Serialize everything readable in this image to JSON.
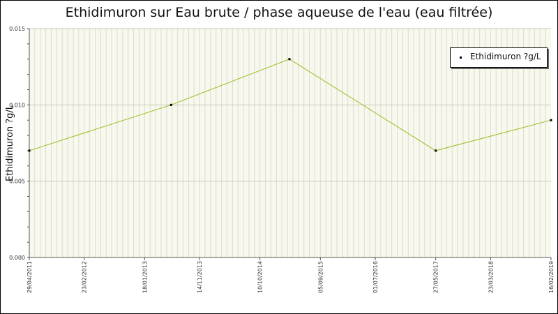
{
  "chart_data": {
    "type": "line",
    "title": "Ethidimuron sur Eau brute / phase aqueuse de l'eau (eau filtrée)",
    "xlabel": "",
    "ylabel": "Ethidimuron ?g/L",
    "x_tick_labels": [
      "29/04/2011",
      "23/02/2012",
      "18/01/2013",
      "14/11/2013",
      "10/10/2014",
      "05/09/2015",
      "01/07/2016",
      "27/05/2017",
      "23/03/2018",
      "16/02/2019"
    ],
    "y_tick_labels": [
      "0.000",
      "0.005",
      "0.010",
      "0.015"
    ],
    "ylim": [
      0,
      0.015
    ],
    "xlim": [
      "2011-04-29",
      "2019-02-16"
    ],
    "grid": true,
    "legend_position": "top-right",
    "series": [
      {
        "name": "Ethidimuron ?g/L",
        "color": "#99bb22",
        "x": [
          "2011-04-29",
          "2013-06-12",
          "2015-03-20",
          "2017-05-27",
          "2019-02-16"
        ],
        "y": [
          0.007,
          0.01,
          0.013,
          0.007,
          0.009
        ]
      }
    ]
  }
}
